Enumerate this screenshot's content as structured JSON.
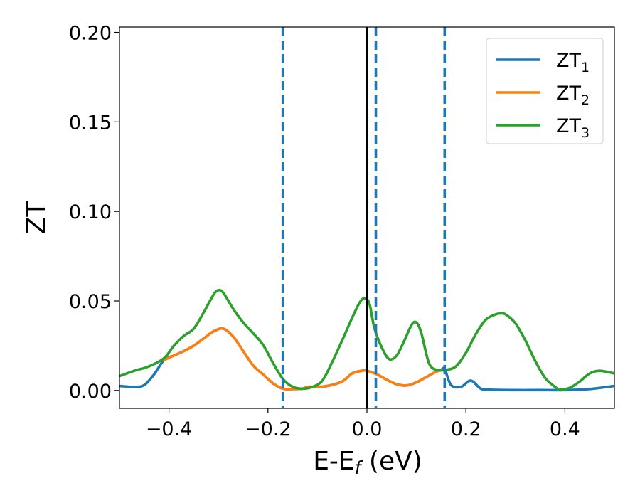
{
  "chart_data": {
    "type": "line",
    "title": "",
    "xlabel": "E-E_f (eV)",
    "xlabel_main": "E-E",
    "xlabel_sub": "f",
    "xlabel_unit": " (eV)",
    "ylabel": "ZT",
    "xlim": [
      -0.5,
      0.5
    ],
    "ylim": [
      -0.01,
      0.203
    ],
    "xticks": [
      -0.4,
      -0.2,
      0.0,
      0.2,
      0.4
    ],
    "xtick_labels": [
      "−0.4",
      "−0.2",
      "0.0",
      "0.2",
      "0.4"
    ],
    "yticks": [
      0.0,
      0.05,
      0.1,
      0.15,
      0.2
    ],
    "ytick_labels": [
      "0.00",
      "0.05",
      "0.10",
      "0.15",
      "0.20"
    ],
    "grid": false,
    "legend_position": "top-right",
    "vlines": [
      {
        "x": 0.0,
        "color": "#000000",
        "style": "solid"
      },
      {
        "x": -0.17,
        "color": "#1f77b4",
        "style": "dashed"
      },
      {
        "x": 0.018,
        "color": "#1f77b4",
        "style": "dashed"
      },
      {
        "x": 0.157,
        "color": "#1f77b4",
        "style": "dashed"
      }
    ],
    "series": [
      {
        "name": "ZT_1",
        "label_main": "ZT",
        "label_sub": "1",
        "color": "#1f77b4",
        "x": [
          -0.5,
          -0.47,
          -0.45,
          -0.43,
          -0.41,
          -0.39,
          -0.37,
          -0.35,
          -0.33,
          -0.31,
          -0.29,
          -0.27,
          -0.25,
          -0.23,
          -0.21,
          -0.19,
          -0.17,
          -0.15,
          -0.13,
          -0.12,
          -0.1,
          -0.08,
          -0.05,
          -0.03,
          -0.01,
          0.0,
          0.02,
          0.04,
          0.06,
          0.08,
          0.1,
          0.12,
          0.14,
          0.15,
          0.157,
          0.17,
          0.19,
          0.21,
          0.23,
          0.25,
          0.3,
          0.35,
          0.4,
          0.45,
          0.5
        ],
        "y": [
          0.0025,
          0.002,
          0.003,
          0.009,
          0.017,
          0.0195,
          0.022,
          0.025,
          0.029,
          0.033,
          0.0345,
          0.03,
          0.022,
          0.014,
          0.009,
          0.004,
          0.001,
          0.0008,
          0.001,
          0.002,
          0.002,
          0.0025,
          0.005,
          0.0095,
          0.011,
          0.011,
          0.009,
          0.006,
          0.0035,
          0.0028,
          0.0045,
          0.0075,
          0.0105,
          0.0115,
          0.012,
          0.003,
          0.002,
          0.0055,
          0.001,
          0.0004,
          0.0002,
          0.0002,
          0.0002,
          0.0008,
          0.0025
        ]
      },
      {
        "name": "ZT_2",
        "label_main": "ZT",
        "label_sub": "2",
        "color": "#ff7f0e",
        "x": [
          -0.41,
          -0.39,
          -0.37,
          -0.35,
          -0.33,
          -0.31,
          -0.29,
          -0.27,
          -0.25,
          -0.23,
          -0.21,
          -0.19,
          -0.17,
          -0.15,
          -0.13,
          -0.12,
          -0.1,
          -0.08,
          -0.05,
          -0.03,
          -0.01,
          0.0,
          0.02,
          0.04,
          0.06,
          0.08,
          0.1,
          0.12,
          0.14,
          0.15
        ],
        "y": [
          0.017,
          0.0195,
          0.022,
          0.025,
          0.029,
          0.033,
          0.0345,
          0.03,
          0.022,
          0.014,
          0.009,
          0.004,
          0.001,
          0.0008,
          0.001,
          0.002,
          0.002,
          0.0025,
          0.005,
          0.0095,
          0.011,
          0.011,
          0.009,
          0.006,
          0.0035,
          0.0028,
          0.0045,
          0.0075,
          0.0105,
          0.0115
        ]
      },
      {
        "name": "ZT_3",
        "label_main": "ZT",
        "label_sub": "3",
        "color": "#2ca02c",
        "x": [
          -0.5,
          -0.47,
          -0.44,
          -0.41,
          -0.39,
          -0.37,
          -0.35,
          -0.33,
          -0.31,
          -0.3,
          -0.29,
          -0.27,
          -0.25,
          -0.23,
          -0.21,
          -0.19,
          -0.17,
          -0.15,
          -0.13,
          -0.11,
          -0.09,
          -0.07,
          -0.05,
          -0.03,
          -0.015,
          -0.005,
          0.005,
          0.015,
          0.03,
          0.045,
          0.06,
          0.075,
          0.09,
          0.1,
          0.11,
          0.125,
          0.14,
          0.16,
          0.18,
          0.2,
          0.22,
          0.24,
          0.26,
          0.27,
          0.28,
          0.3,
          0.32,
          0.34,
          0.36,
          0.38,
          0.39,
          0.41,
          0.43,
          0.45,
          0.47,
          0.5
        ],
        "y": [
          0.008,
          0.011,
          0.0135,
          0.018,
          0.025,
          0.0305,
          0.0345,
          0.0435,
          0.0535,
          0.056,
          0.0545,
          0.0455,
          0.038,
          0.032,
          0.0255,
          0.0155,
          0.0065,
          0.002,
          0.001,
          0.002,
          0.0055,
          0.016,
          0.028,
          0.0405,
          0.049,
          0.0515,
          0.0485,
          0.035,
          0.024,
          0.0175,
          0.0195,
          0.0275,
          0.0365,
          0.038,
          0.032,
          0.0155,
          0.0115,
          0.0115,
          0.0135,
          0.021,
          0.0315,
          0.0395,
          0.0425,
          0.043,
          0.0425,
          0.0375,
          0.028,
          0.0165,
          0.007,
          0.002,
          0.0005,
          0.0015,
          0.005,
          0.0095,
          0.011,
          0.0095
        ]
      }
    ]
  }
}
